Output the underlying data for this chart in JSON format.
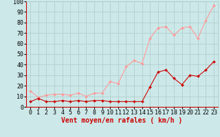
{
  "x": [
    0,
    1,
    2,
    3,
    4,
    5,
    6,
    7,
    8,
    9,
    10,
    11,
    12,
    13,
    14,
    15,
    16,
    17,
    18,
    19,
    20,
    21,
    22,
    23
  ],
  "avg_wind": [
    5,
    8,
    5,
    5,
    6,
    5,
    6,
    5,
    6,
    6,
    5,
    5,
    5,
    5,
    5,
    19,
    33,
    35,
    27,
    21,
    30,
    29,
    35,
    43
  ],
  "gust_wind": [
    15,
    9,
    11,
    12,
    12,
    11,
    13,
    10,
    13,
    13,
    24,
    22,
    38,
    44,
    41,
    65,
    75,
    76,
    68,
    75,
    76,
    65,
    82,
    96
  ],
  "xlabel": "Vent moyen/en rafales ( km/h )",
  "yticks": [
    0,
    10,
    20,
    30,
    40,
    50,
    60,
    70,
    80,
    90,
    100
  ],
  "xticks": [
    0,
    1,
    2,
    3,
    4,
    5,
    6,
    7,
    8,
    9,
    10,
    11,
    12,
    13,
    14,
    15,
    16,
    17,
    18,
    19,
    20,
    21,
    22,
    23
  ],
  "bg_color": "#cce8e8",
  "grid_color": "#aacccc",
  "avg_color": "#cc0000",
  "gust_color": "#ff9999",
  "xlabel_color": "#cc0000",
  "xlabel_fontsize": 7,
  "tick_fontsize": 6,
  "ylim": [
    0,
    100
  ],
  "xlim": [
    -0.5,
    23.5
  ]
}
